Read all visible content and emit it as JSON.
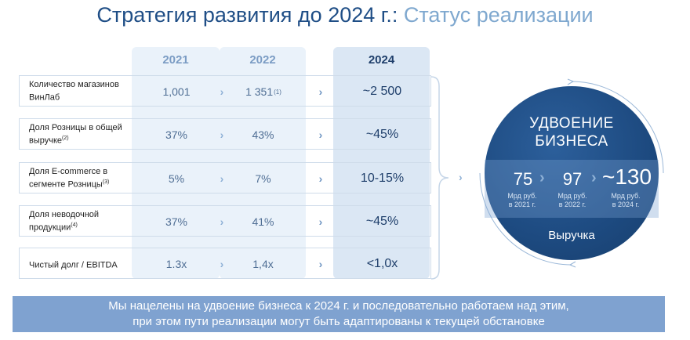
{
  "title": {
    "main": "Стратегия развития до 2024 г.:",
    "sub": "Статус реализации"
  },
  "years": [
    "2021",
    "2022",
    "2024"
  ],
  "rows": [
    {
      "label": "Количество магазинов ВинЛаб",
      "label_sup": "",
      "v2021": "1,001",
      "v2022": "1 351",
      "v2022_sup": "(1)",
      "v2024": "~2 500"
    },
    {
      "label": "Доля Розницы в общей выручке",
      "label_sup": "(2)",
      "v2021": "37%",
      "v2022": "43%",
      "v2022_sup": "",
      "v2024": "~45%"
    },
    {
      "label": "Доля E-commerce в сегменте Розницы",
      "label_sup": "(3)",
      "v2021": "5%",
      "v2022": "7%",
      "v2022_sup": "",
      "v2024": "10-15%"
    },
    {
      "label": "Доля неводочной продукции",
      "label_sup": "(4)",
      "v2021": "37%",
      "v2022": "41%",
      "v2022_sup": "",
      "v2024": "~45%"
    },
    {
      "label": "Чистый долг / EBITDA",
      "label_sup": "",
      "v2021": "1.3x",
      "v2022": "1,4x",
      "v2022_sup": "",
      "v2024": "<1,0x"
    }
  ],
  "circle": {
    "title_line1": "УДВОЕНИЕ",
    "title_line2": "БИЗНЕСА",
    "values": [
      {
        "num": "75",
        "cap1": "Мрд руб.",
        "cap2": "в 2021 г."
      },
      {
        "num": "97",
        "cap1": "Мрд руб.",
        "cap2": "в 2022 г."
      },
      {
        "num": "~130",
        "cap1": "Мрд руб.",
        "cap2": "в 2024 г."
      }
    ],
    "revenue": "Выручка"
  },
  "banner": {
    "line1": "Мы нацелены на удвоение бизнеса к 2024 г. и последовательно работаем над этим,",
    "line2": "при этом пути реализации могут быть адаптированы к текущей обстановке"
  },
  "colors": {
    "dark_blue": "#1f4e86",
    "light_blue": "#7fa8cf",
    "banner": "#7fa2d0"
  }
}
